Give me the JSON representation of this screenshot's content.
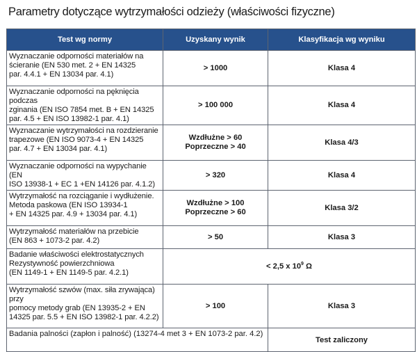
{
  "title": "Parametry dotyczące wytrzymałości odzieży (właściwości fizyczne)",
  "headers": [
    "Test wg normy",
    "Uzyskany wynik",
    "Klasyfikacja wg wyniku"
  ],
  "rows": [
    {
      "test": [
        "Wyznaczanie odporności materiałów na",
        "ścieranie (EN 530 met. 2 + EN 14325",
        "par. 4.4.1 + EN 13034 par. 4.1)"
      ],
      "result": [
        "> 1000"
      ],
      "class": "Klasa 4"
    },
    {
      "test": [
        "Wyznaczanie odporności na pęknięcia podczas",
        "zginania (EN ISO 7854 met. B + EN 14325",
        "par. 4.5 + EN ISO 13982-1 par. 4.1)"
      ],
      "result": [
        "> 100 000"
      ],
      "class": "Klasa 4"
    },
    {
      "test": [
        "Wyznaczanie wytrzymałości na rozdzieranie",
        "trapezowe (EN ISO 9073-4 + EN 14325",
        "par. 4.7 + EN 13034 par. 4.1)"
      ],
      "result": [
        "Wzdłużne > 60",
        "Poprzeczne > 40"
      ],
      "class": "Klasa 4/3"
    },
    {
      "test": [
        "Wyznaczanie odporności na wypychanie (EN",
        "ISO 13938-1 + EC 1 +EN 14126 par. 4.1.2)"
      ],
      "result": [
        "> 320"
      ],
      "class": "Klasa 4"
    },
    {
      "test": [
        "Wytrzymałość na rozciąganie i wydłużenie.",
        "Metoda paskowa (EN ISO 13934-1",
        "+ EN 14325 par. 4.9 + 13034 par. 4.1)"
      ],
      "result": [
        "Wzdłużne > 100",
        "Poprzeczne > 60"
      ],
      "class": "Klasa 3/2"
    },
    {
      "test": [
        "Wytrzymałość materiałów na przebicie",
        "(EN 863 + 1073-2 par. 4.2)"
      ],
      "result": [
        "> 50"
      ],
      "class": "Klasa 3"
    },
    {
      "test": [
        "Badanie właściwości elektrostatycznych",
        "Rezystywność powierzchniowa",
        "(EN 1149-1 + EN 1149-5 par. 4.2.1)"
      ],
      "merged": {
        "base": "< 2,5 x 10",
        "exp": "9",
        "unit": " Ω"
      }
    },
    {
      "test": [
        "Wytrzymałość szwów (max. siła zrywająca) przy",
        "pomocy metody grab (EN 13935-2 + EN",
        "14325 par. 5.5 + EN ISO 13982-1 par. 4.2.2)"
      ],
      "result": [
        "> 100"
      ],
      "class": "Klasa 3"
    },
    {
      "test": [
        "Badania palności (zapłon i palność) (13274-4 met 3 + EN 1073-2 par. 4.2)"
      ],
      "merged_class": "Test zaliczony"
    }
  ]
}
